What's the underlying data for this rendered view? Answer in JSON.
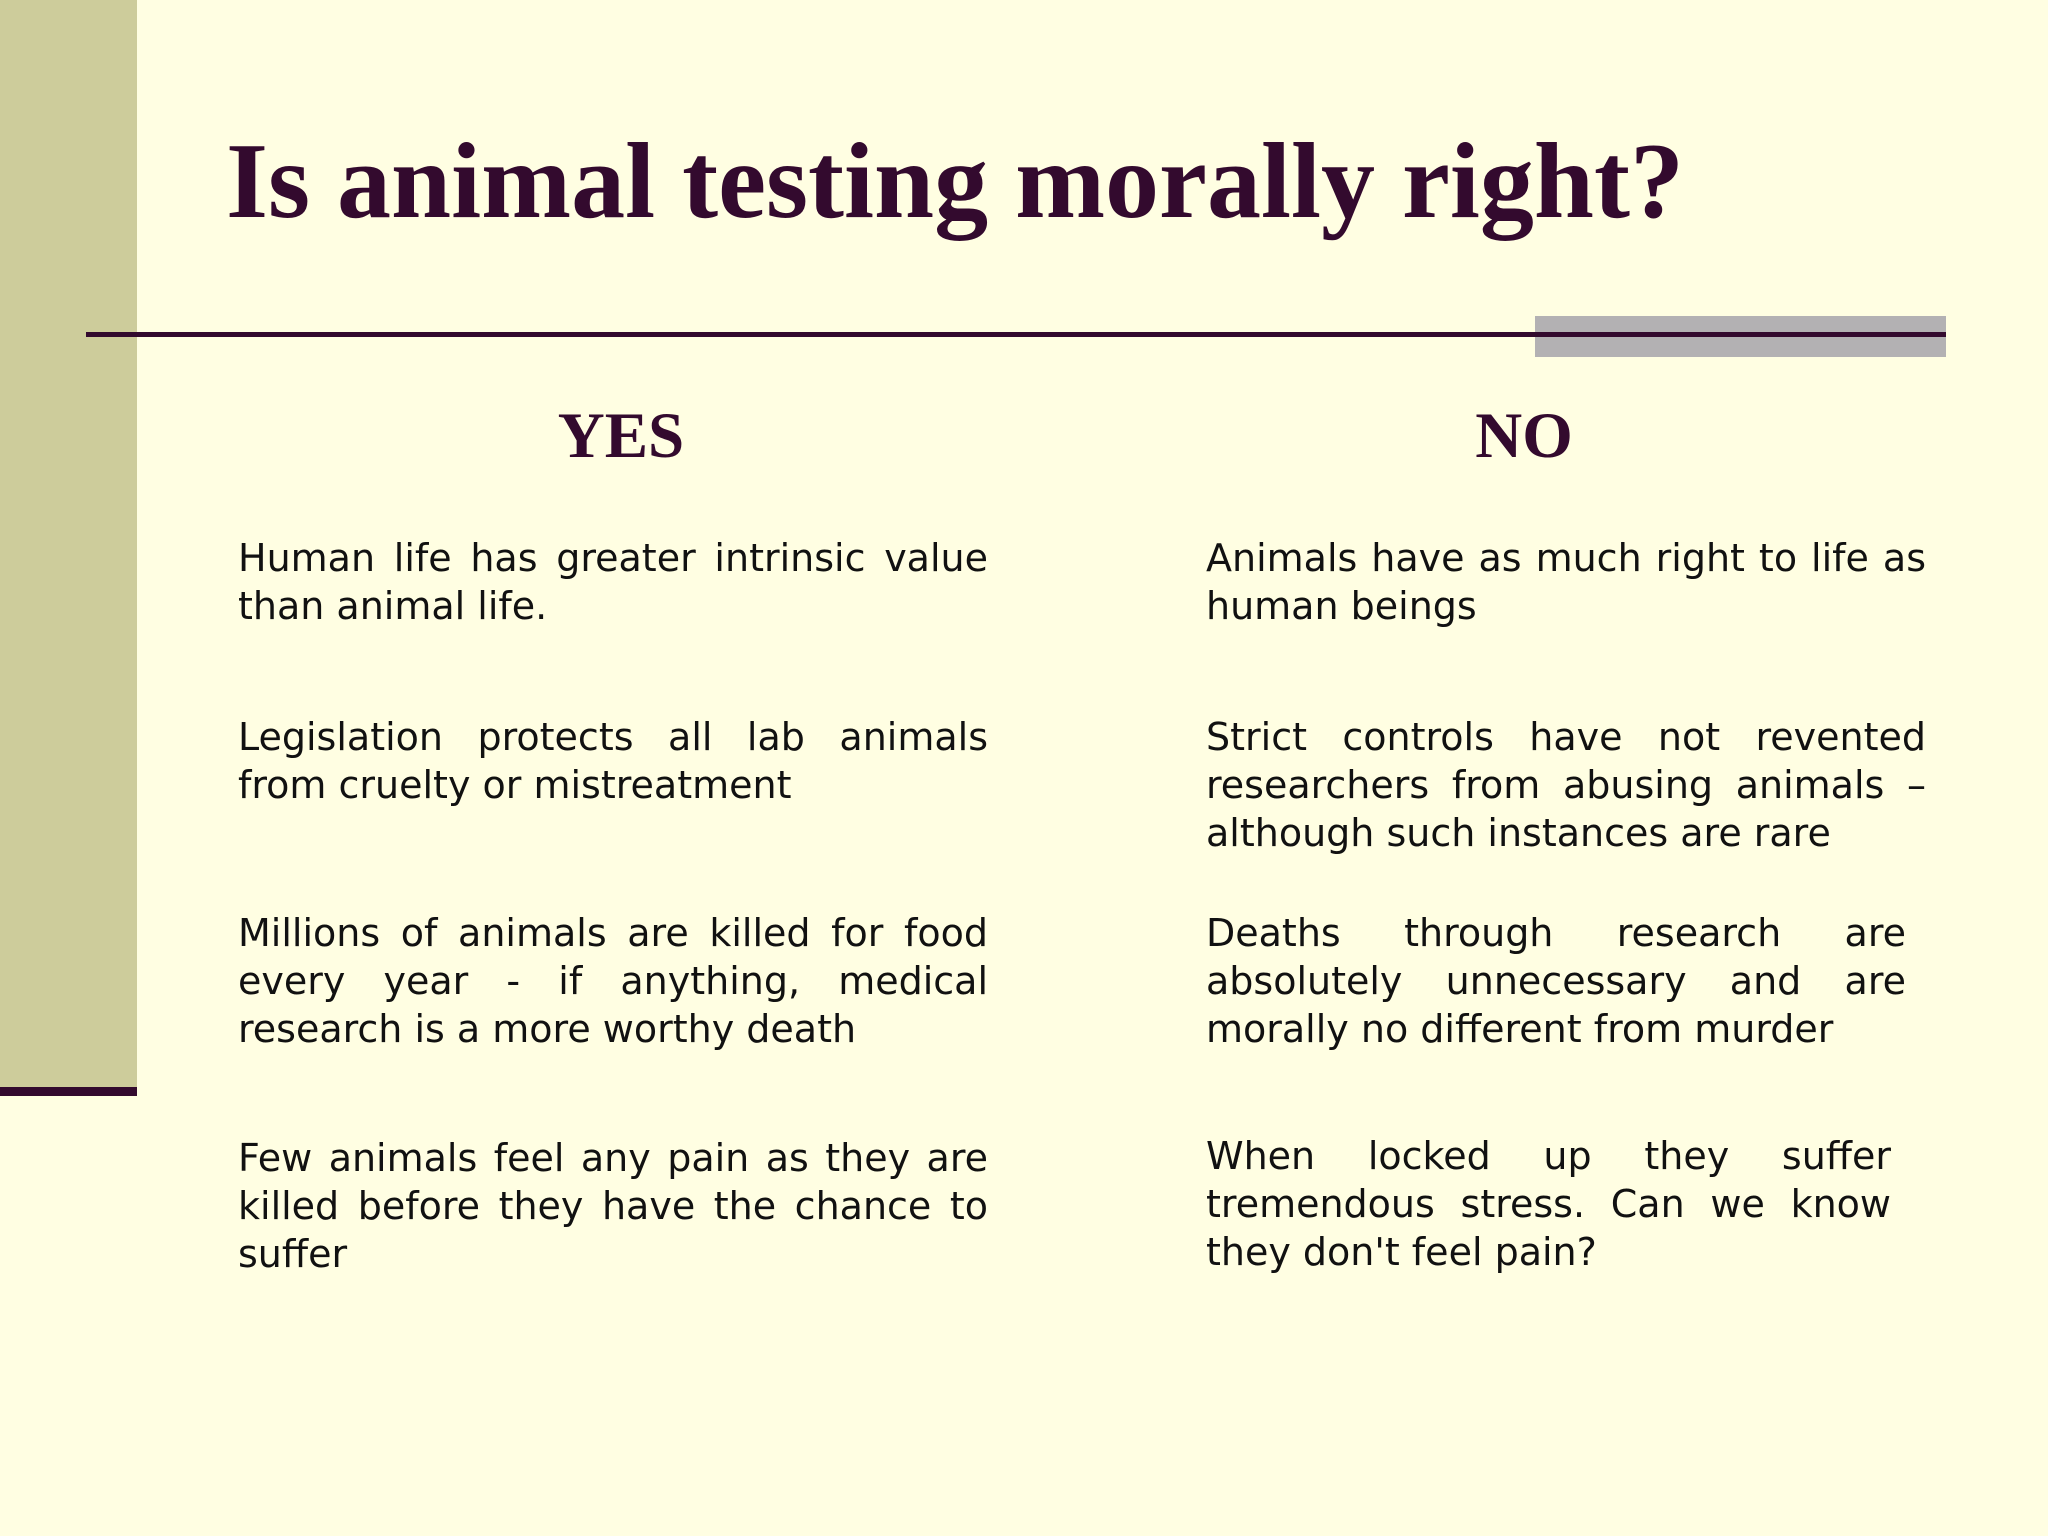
{
  "slide": {
    "title": "Is animal testing morally right?",
    "columns": [
      {
        "heading": "YES",
        "arguments": [
          "Human life has greater intrinsic value than animal life.",
          "Legislation protects all lab animals from cruelty or mistreatment",
          "Millions of animals are killed for food every year - if anything, medical research is a more worthy death",
          "Few animals feel any pain as they are killed before they have the chance to suffer"
        ]
      },
      {
        "heading": "NO",
        "arguments": [
          "Animals have as much right to life as human beings",
          "Strict controls have not revented researchers from abusing animals – although such instances are rare",
          "Deaths through research are absolutely unnecessary and are morally no different from murder",
          "When locked up they suffer tremendous stress. Can we know they don't feel pain?"
        ]
      }
    ]
  },
  "colors": {
    "background": "#FFFEE2",
    "accent_band": "#CDCC9B",
    "title_text": "#330A2E",
    "rule": "#330A2E",
    "gray_bar": "#B3B1B3",
    "body_text": "#111111"
  }
}
